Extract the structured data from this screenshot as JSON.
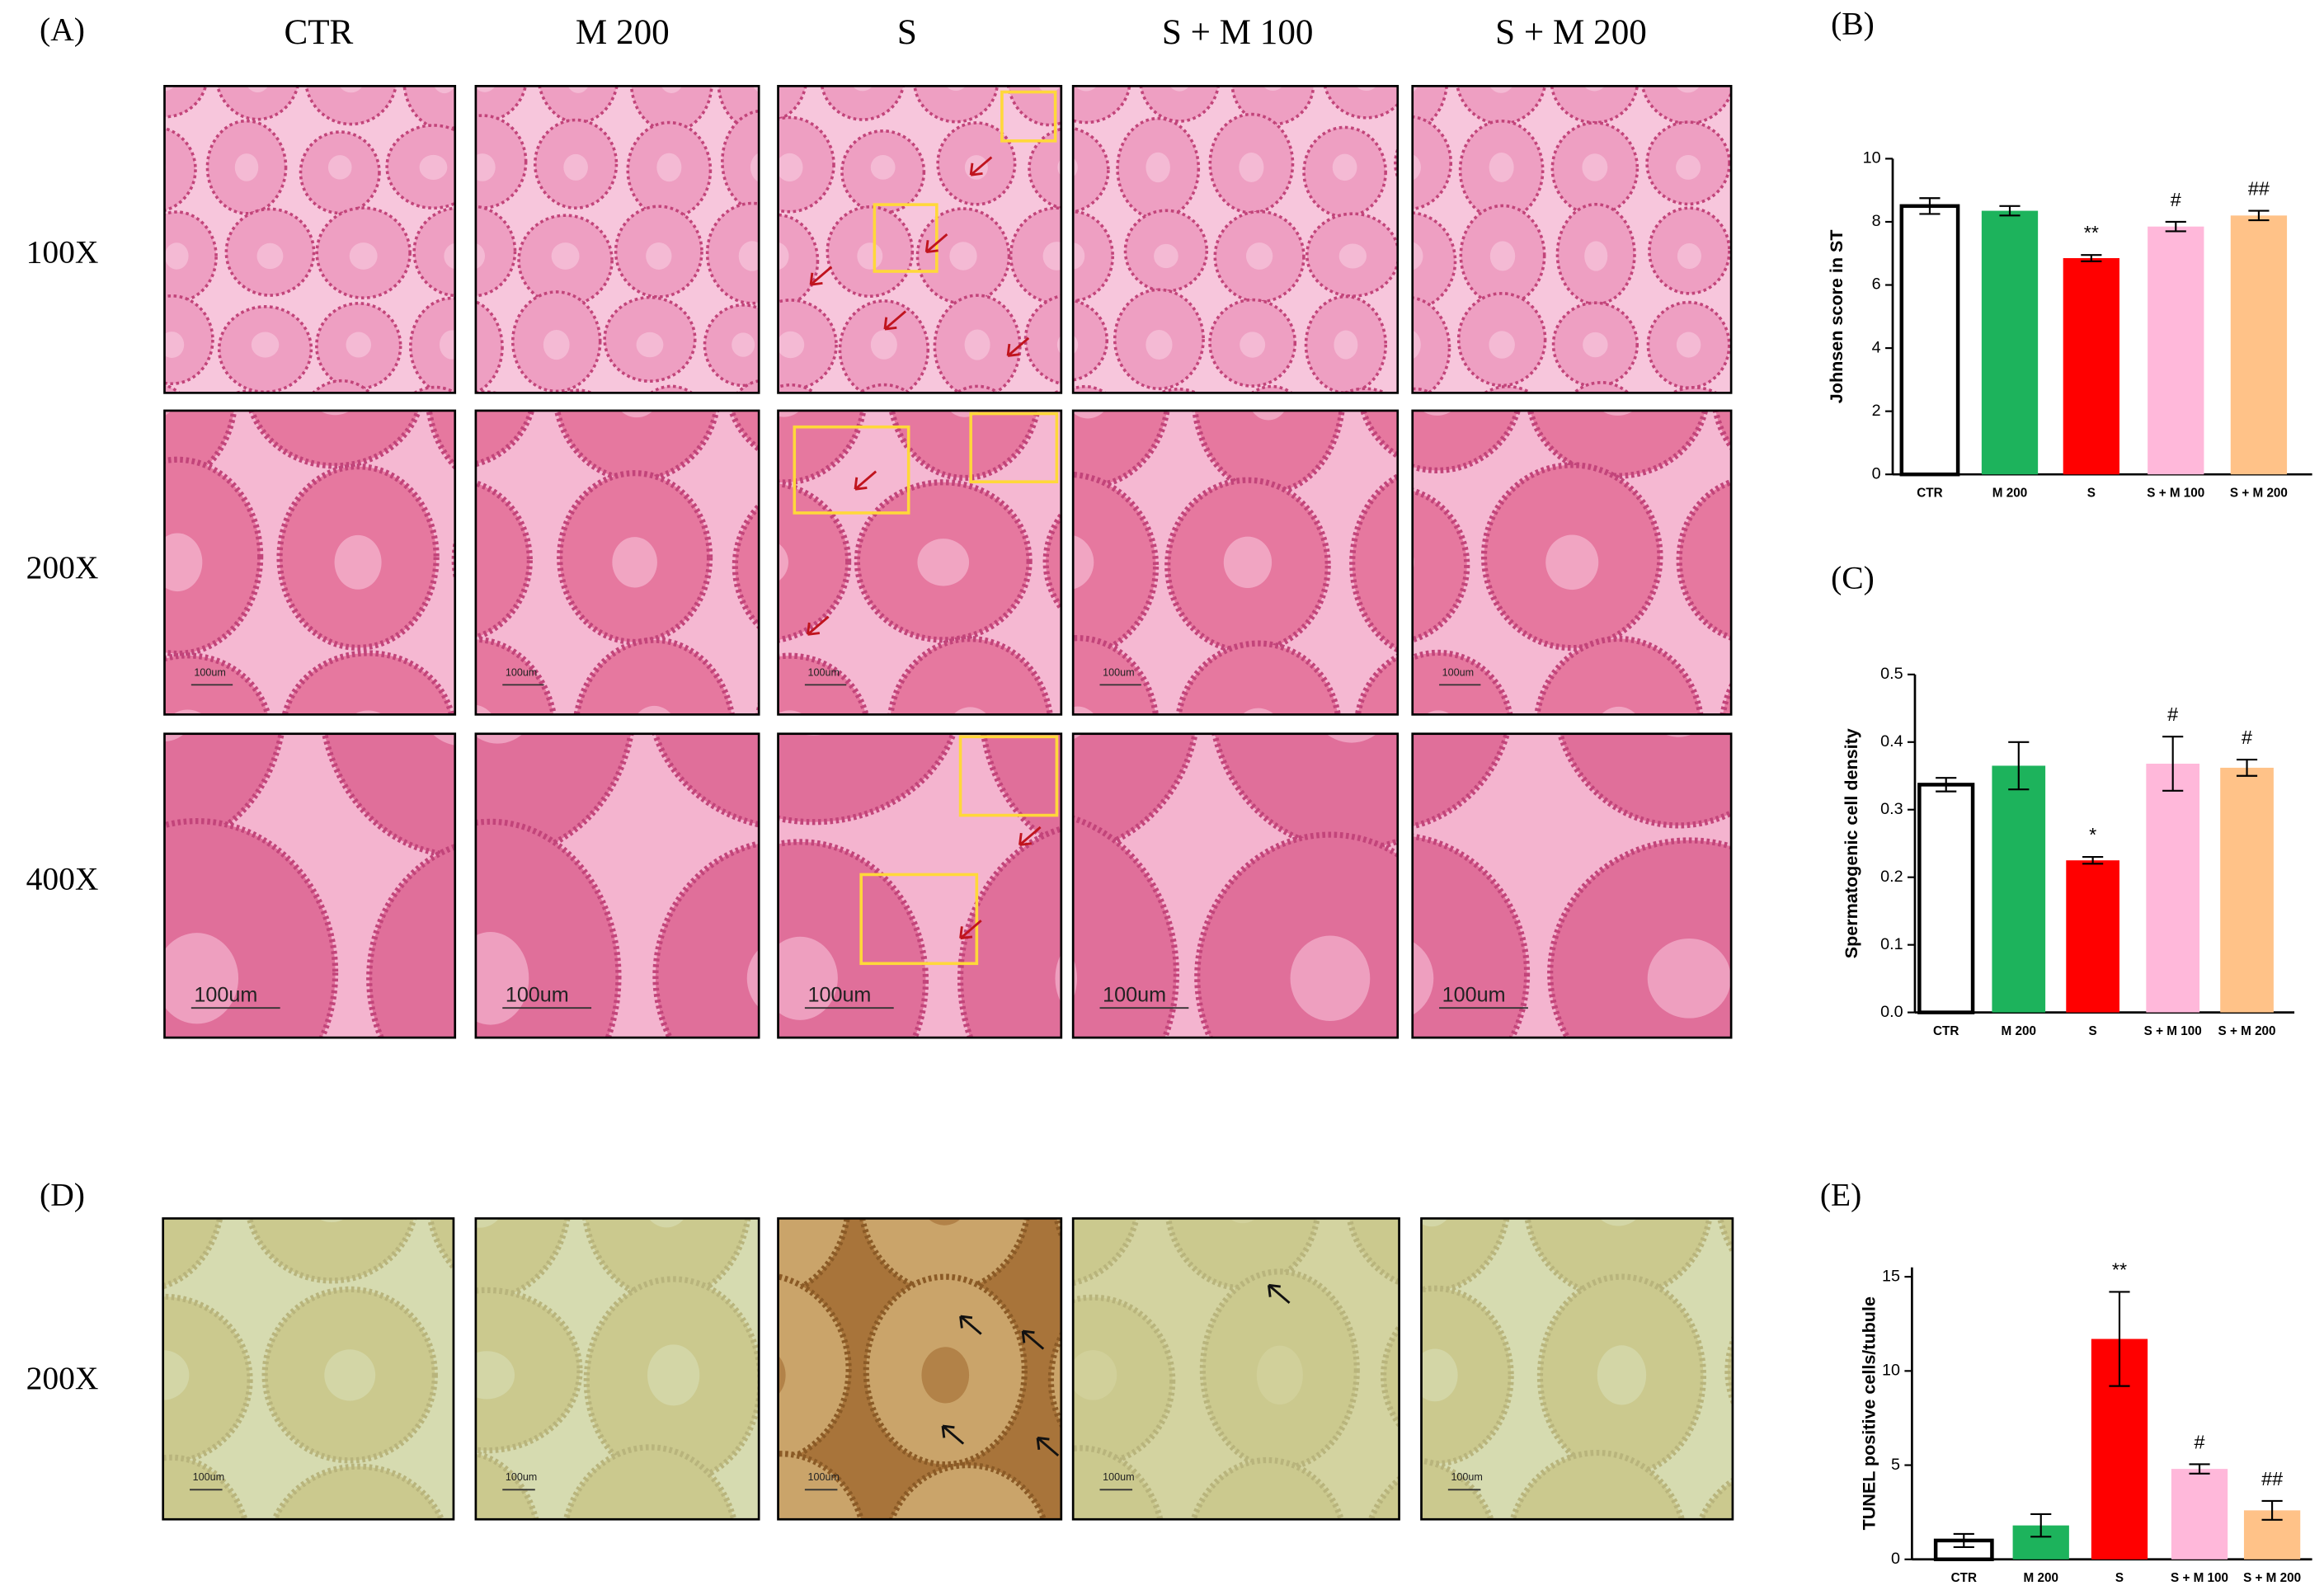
{
  "micrographs": {
    "panel_labels": [
      "(A)",
      "(D)"
    ],
    "columns": [
      "CTR",
      "M 200",
      "S",
      "S + M 100",
      "S + M 200"
    ],
    "magnifications": [
      "100X",
      "200X",
      "400X"
    ],
    "tunel_magnification": "200X",
    "scale_bar": "100um"
  },
  "chart_data": [
    {
      "type": "bar",
      "panel_label": "(B)",
      "y_label": "Johnsen score in ST",
      "categories": [
        "CTR",
        "M 200",
        "S",
        "S + M 100",
        "S + M 200"
      ],
      "values": [
        8.5,
        8.35,
        6.85,
        7.85,
        8.2
      ],
      "errors": [
        0.25,
        0.15,
        0.1,
        0.15,
        0.15
      ],
      "annotations": [
        null,
        null,
        "**",
        "#",
        "##"
      ],
      "colors": [
        "#ffffff",
        "#1db35c",
        "#ff0000",
        "#ffb8da",
        "#ffc288"
      ],
      "ylim": [
        0,
        10
      ],
      "yticks": [
        0,
        2,
        4,
        6,
        8,
        10
      ]
    },
    {
      "type": "bar",
      "panel_label": "(C)",
      "y_label": "Spermatogenic cell density",
      "categories": [
        "CTR",
        "M 200",
        "S",
        "S + M 100",
        "S + M 200"
      ],
      "values": [
        0.337,
        0.365,
        0.225,
        0.368,
        0.362
      ],
      "errors": [
        0.01,
        0.035,
        0.005,
        0.04,
        0.012
      ],
      "annotations": [
        null,
        null,
        "*",
        "#",
        "#"
      ],
      "colors": [
        "#ffffff",
        "#1db35c",
        "#ff0000",
        "#ffb8da",
        "#ffc288"
      ],
      "ylim": [
        0,
        0.5
      ],
      "yticks": [
        {
          "value": 0,
          "label": "0.0"
        },
        0.1,
        0.2,
        0.3,
        0.4,
        0.5
      ]
    },
    {
      "type": "bar",
      "panel_label": "(E)",
      "y_label": "TUNEL positive cells/tubule",
      "categories": [
        "CTR",
        "M 200",
        "S",
        "S + M 100",
        "S + M 200"
      ],
      "values": [
        1.0,
        1.8,
        11.7,
        4.8,
        2.6
      ],
      "errors": [
        0.35,
        0.6,
        2.5,
        0.25,
        0.5
      ],
      "annotations": [
        null,
        null,
        "**",
        "#",
        "##"
      ],
      "colors": [
        "#ffffff",
        "#1db35c",
        "#ff0000",
        "#ffb8da",
        "#ffc288"
      ],
      "ylim": [
        0,
        15.5
      ],
      "yticks": [
        0,
        5,
        10,
        15
      ]
    }
  ]
}
